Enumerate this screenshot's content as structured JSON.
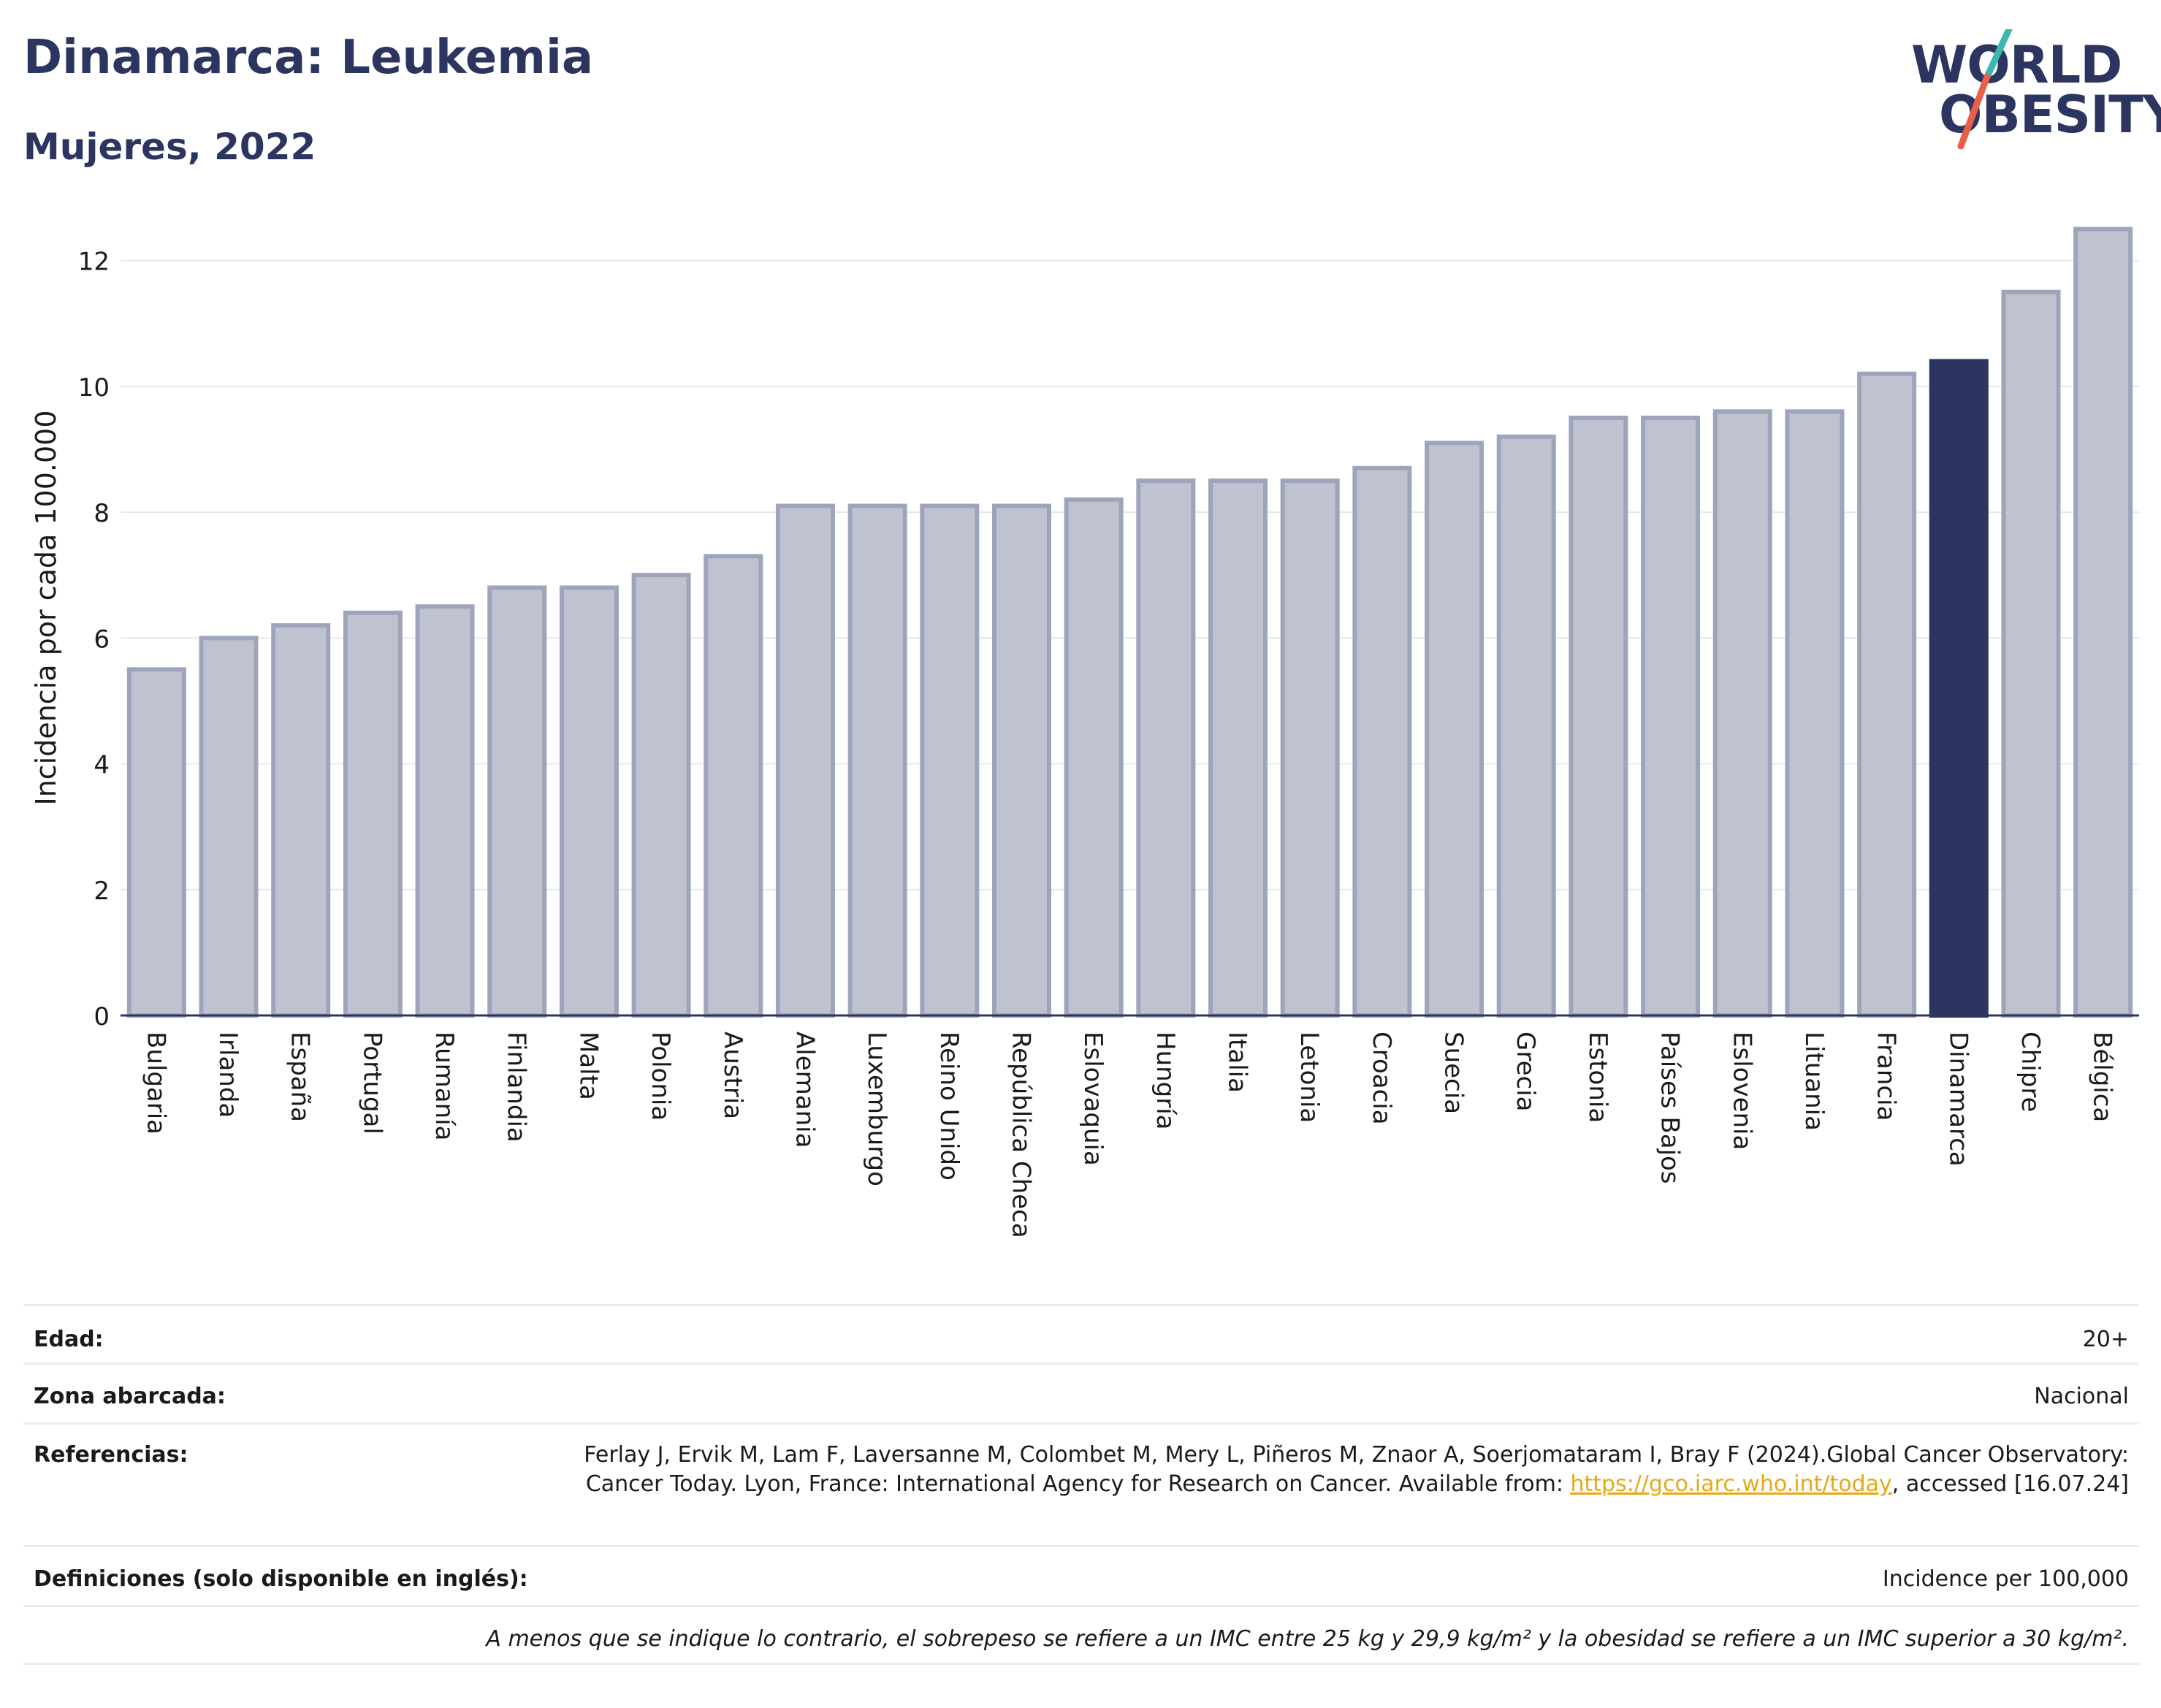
{
  "header": {
    "title": "Dinamarca: Leukemia",
    "subtitle": "Mujeres, 2022"
  },
  "logo": {
    "line1": "WORLD",
    "line2": "OBESITY",
    "colors": {
      "text": "#2b3560",
      "slash_top": "#3bb8b0",
      "slash_bottom": "#e8604c"
    }
  },
  "chart_data": {
    "type": "bar",
    "title": "",
    "xlabel": "",
    "ylabel": "Incidencia por cada 100.000",
    "ylim": [
      0,
      12.6
    ],
    "yticks": [
      0,
      2,
      4,
      6,
      8,
      10,
      12
    ],
    "grid": true,
    "highlight": "Dinamarca",
    "colors": {
      "bar": "#bfc3d0",
      "bar_edge": "#9ea4bb",
      "highlight": "#2b3560",
      "grid": "#e6e8ee"
    },
    "categories": [
      "Bulgaria",
      "Irlanda",
      "España",
      "Portugal",
      "Rumanía",
      "Finlandia",
      "Malta",
      "Polonia",
      "Austria",
      "Alemania",
      "Luxemburgo",
      "Reino Unido",
      "República Checa",
      "Eslovaquia",
      "Hungría",
      "Italia",
      "Letonia",
      "Croacia",
      "Suecia",
      "Grecia",
      "Estonia",
      "Países Bajos",
      "Eslovenia",
      "Lituania",
      "Francia",
      "Dinamarca",
      "Chipre",
      "Bélgica"
    ],
    "values": [
      5.5,
      6.0,
      6.2,
      6.4,
      6.5,
      6.8,
      6.8,
      7.0,
      7.3,
      8.1,
      8.1,
      8.1,
      8.1,
      8.2,
      8.5,
      8.5,
      8.5,
      8.7,
      9.1,
      9.2,
      9.5,
      9.5,
      9.6,
      9.6,
      10.2,
      10.4,
      11.5,
      12.5
    ]
  },
  "info": {
    "age_label": "Edad:",
    "age_value": "20+",
    "area_label": "Zona abarcada:",
    "area_value": "Nacional",
    "refs_label": "Referencias:",
    "refs_text_1": "Ferlay J, Ervik M, Lam F, Laversanne M, Colombet M, Mery L, Piñeros M, Znaor A, Soerjomataram I, Bray F (2024).Global Cancer Observatory: Cancer Today. Lyon, France: International Agency for Research on Cancer. Available from: ",
    "refs_link": "https://gco.iarc.who.int/today",
    "refs_text_2": ", accessed [16.07.24]",
    "defs_label": "Definiciones (solo disponible en inglés):",
    "defs_value": "Incidence per 100,000",
    "note": "A menos que se indique lo contrario, el sobrepeso se refiere a un IMC entre 25 kg y 29,9 kg/m² y la obesidad se refiere a un IMC superior a 30 kg/m²."
  }
}
